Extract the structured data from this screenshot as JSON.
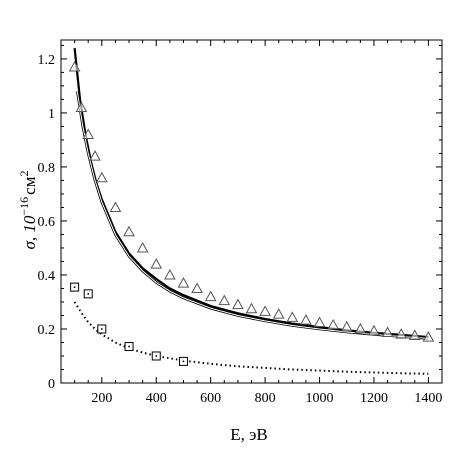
{
  "chart_data": {
    "type": "scatter",
    "title": "",
    "xlabel": "E, эВ",
    "ylabel": {
      "main": "σ, 10",
      "exp": "−16",
      "unit": "см",
      "unit_exp": "2"
    },
    "xlim": [
      50,
      1450
    ],
    "ylim": [
      0,
      1.27
    ],
    "x_ticks": [
      200,
      400,
      600,
      800,
      1000,
      1200,
      1400
    ],
    "x_tick_labels": [
      "200",
      "400",
      "600",
      "800",
      "1000",
      "1200",
      "1400"
    ],
    "y_ticks": [
      0,
      0.2,
      0.4,
      0.6,
      0.8,
      1.0,
      1.2
    ],
    "y_tick_labels": [
      "0",
      "0.2",
      "0.4",
      "0.6",
      "0.8",
      "1",
      "1.2"
    ],
    "grid": false,
    "legend": "none",
    "series": [
      {
        "kind": "line",
        "style": "solid-thick",
        "color": "#000000",
        "x": [
          100,
          120,
          140,
          160,
          180,
          200,
          250,
          300,
          350,
          400,
          450,
          500,
          600,
          700,
          800,
          900,
          1000,
          1100,
          1200,
          1300,
          1400
        ],
        "values": [
          1.24,
          1.05,
          0.92,
          0.82,
          0.74,
          0.68,
          0.56,
          0.48,
          0.425,
          0.385,
          0.35,
          0.325,
          0.285,
          0.258,
          0.237,
          0.22,
          0.207,
          0.195,
          0.186,
          0.178,
          0.17
        ]
      },
      {
        "kind": "line",
        "style": "solid-thin-double",
        "color": "#000000",
        "x": [
          110,
          130,
          150,
          175,
          200,
          250,
          300,
          350,
          400,
          450,
          500,
          600,
          700,
          800,
          900,
          1000,
          1100,
          1200,
          1300,
          1400
        ],
        "values": [
          1.08,
          0.95,
          0.85,
          0.75,
          0.67,
          0.55,
          0.47,
          0.415,
          0.372,
          0.34,
          0.315,
          0.277,
          0.25,
          0.23,
          0.213,
          0.2,
          0.189,
          0.18,
          0.172,
          0.165
        ]
      },
      {
        "kind": "line",
        "style": "dotted",
        "color": "#000000",
        "x": [
          100,
          125,
          150,
          175,
          200,
          250,
          300,
          350,
          400,
          500,
          600,
          700,
          800,
          900,
          1000,
          1100,
          1200,
          1300,
          1400
        ],
        "values": [
          0.3,
          0.26,
          0.225,
          0.2,
          0.18,
          0.15,
          0.128,
          0.113,
          0.1,
          0.083,
          0.071,
          0.062,
          0.056,
          0.05,
          0.046,
          0.042,
          0.039,
          0.036,
          0.034
        ]
      },
      {
        "kind": "points",
        "marker": "triangle",
        "color": "#000000",
        "x": [
          100,
          125,
          150,
          175,
          200,
          250,
          300,
          350,
          400,
          450,
          500,
          550,
          600,
          650,
          700,
          750,
          800,
          850,
          900,
          950,
          1000,
          1050,
          1100,
          1150,
          1200,
          1250,
          1300,
          1350,
          1400
        ],
        "values": [
          1.17,
          1.02,
          0.92,
          0.84,
          0.76,
          0.65,
          0.56,
          0.5,
          0.44,
          0.4,
          0.37,
          0.35,
          0.32,
          0.305,
          0.29,
          0.275,
          0.265,
          0.255,
          0.243,
          0.233,
          0.224,
          0.215,
          0.208,
          0.2,
          0.193,
          0.187,
          0.181,
          0.176,
          0.17
        ]
      },
      {
        "kind": "points",
        "marker": "square",
        "color": "#000000",
        "x": [
          100,
          150,
          200,
          300,
          400,
          500
        ],
        "values": [
          0.355,
          0.33,
          0.2,
          0.135,
          0.1,
          0.08
        ]
      }
    ]
  }
}
